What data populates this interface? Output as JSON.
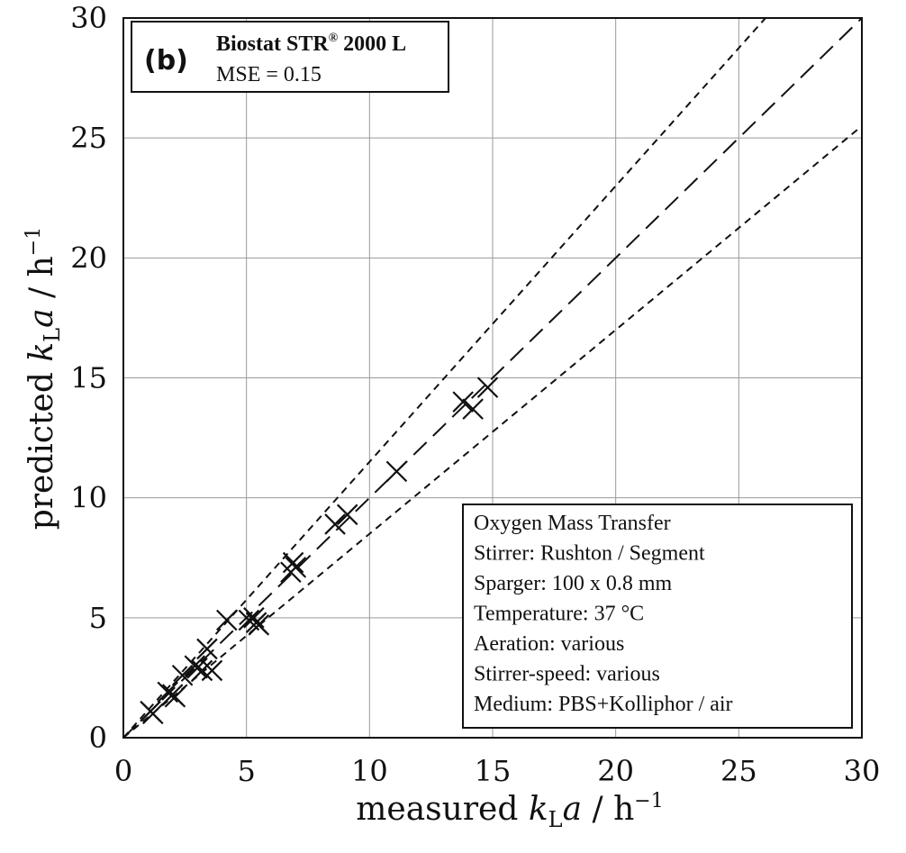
{
  "chart_data": {
    "type": "scatter",
    "panel_label": "(b)",
    "title": "Biostat STR",
    "title_sup": "®",
    "title_suffix": " 2000 L",
    "subtitle": "MSE = 0.15",
    "xlabel": {
      "pre": "measured ",
      "k": "k",
      "sub": "L",
      "a": "a",
      "post": " / h",
      "sup": "−1"
    },
    "ylabel": {
      "pre": "predicted ",
      "k": "k",
      "sub": "L",
      "a": "a",
      "post": " / h",
      "sup": "−1"
    },
    "xlim": [
      0,
      30
    ],
    "ylim": [
      0,
      30
    ],
    "xticks": [
      "0",
      "5",
      "10",
      "15",
      "20",
      "25",
      "30"
    ],
    "yticks": [
      "0",
      "5",
      "10",
      "15",
      "20",
      "25",
      "30"
    ],
    "grid": true,
    "reference_lines": [
      {
        "slope": 1.0,
        "style": "long-dash"
      },
      {
        "slope": 1.15,
        "style": "short-dash"
      },
      {
        "slope": 0.85,
        "style": "short-dash"
      }
    ],
    "marker": "x",
    "points": [
      [
        1.1,
        1.1
      ],
      [
        1.2,
        1.0
      ],
      [
        1.8,
        1.9
      ],
      [
        2.0,
        1.8
      ],
      [
        2.1,
        1.7
      ],
      [
        2.4,
        2.6
      ],
      [
        2.9,
        3.0
      ],
      [
        3.0,
        2.9
      ],
      [
        3.2,
        2.8
      ],
      [
        3.4,
        3.7
      ],
      [
        3.6,
        2.8
      ],
      [
        4.2,
        4.9
      ],
      [
        5.1,
        4.9
      ],
      [
        5.3,
        5.0
      ],
      [
        5.4,
        4.8
      ],
      [
        5.5,
        4.7
      ],
      [
        6.8,
        6.9
      ],
      [
        6.9,
        7.3
      ],
      [
        7.0,
        7.1
      ],
      [
        8.6,
        8.9
      ],
      [
        9.1,
        9.3
      ],
      [
        11.1,
        11.1
      ],
      [
        13.8,
        14.0
      ],
      [
        14.2,
        13.7
      ],
      [
        14.8,
        14.6
      ]
    ],
    "legend_placement": "bottom-right",
    "legend_lines": [
      "Oxygen Mass Transfer",
      "Stirrer: Rushton / Segment",
      "Sparger: 100 x 0.8 mm",
      "Temperature: 37 °C",
      "Aeration: various",
      "Stirrer-speed: various",
      "Medium: PBS+Kolliphor / air"
    ]
  }
}
